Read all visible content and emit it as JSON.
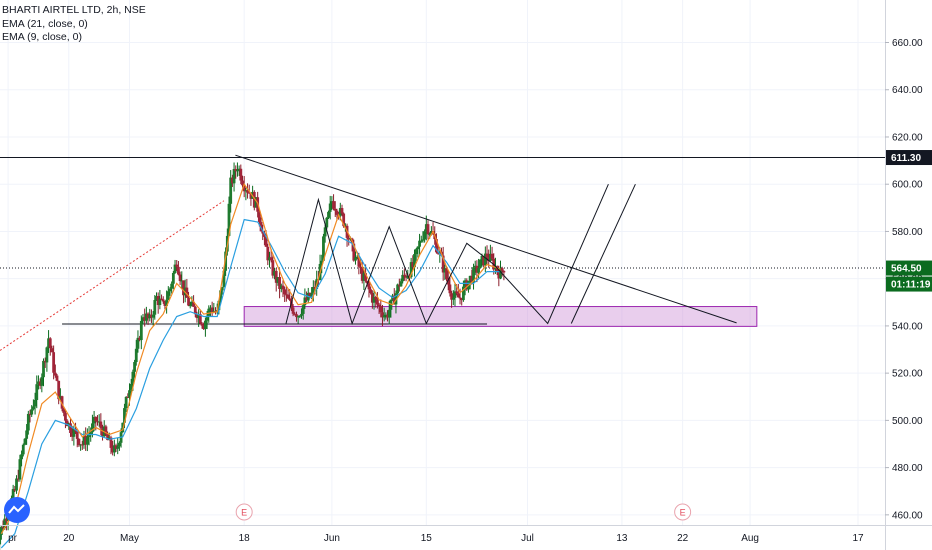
{
  "chart_data": {
    "type": "candlestick",
    "legend": {
      "symbol": "BHARTI AIRTEL LTD, 2h, NSE",
      "ema21": "EMA (21, close, 0)",
      "ema9": "EMA (9, close, 0)"
    },
    "x_ticks": [
      "pr",
      "20",
      "May",
      "18",
      "Jun",
      "15",
      "Jul",
      "13",
      "22",
      "Aug",
      "17"
    ],
    "x_tick_days": [
      0,
      9,
      18,
      35,
      48,
      62,
      77,
      91,
      100,
      110,
      126
    ],
    "y_ticks": [
      460,
      480,
      500,
      520,
      540,
      560,
      580,
      600,
      620,
      640,
      660
    ],
    "y_tick_labels": [
      "460.00",
      "480.00",
      "500.00",
      "520.00",
      "540.00",
      "560.00",
      "580.00",
      "600.00",
      "620.00",
      "640.00",
      "660.00"
    ],
    "ylim": [
      455.7,
      678
    ],
    "xlim_days": [
      -1.2,
      130
    ],
    "current_price": 564.5,
    "current_price_label": "564.50",
    "countdown_label": "01:11:19",
    "resistance_price": 611.3,
    "resistance_label": "611.30",
    "earnings_label": "E",
    "earnings_days": [
      35,
      100
    ],
    "candle_anchors": [
      [
        -2,
        446
      ],
      [
        1,
        470
      ],
      [
        3,
        500
      ],
      [
        5,
        520
      ],
      [
        6,
        535
      ],
      [
        7,
        518
      ],
      [
        8,
        505
      ],
      [
        9,
        498
      ],
      [
        10,
        494
      ],
      [
        11,
        490
      ],
      [
        12,
        494
      ],
      [
        13,
        500
      ],
      [
        14,
        496
      ],
      [
        15,
        490
      ],
      [
        16,
        486
      ],
      [
        17,
        500
      ],
      [
        18,
        515
      ],
      [
        19,
        528
      ],
      [
        20,
        545
      ],
      [
        21,
        542
      ],
      [
        22,
        552
      ],
      [
        23,
        548
      ],
      [
        24,
        556
      ],
      [
        25,
        568
      ],
      [
        26,
        555
      ],
      [
        27,
        548
      ],
      [
        28,
        546
      ],
      [
        29,
        541
      ],
      [
        30,
        548
      ],
      [
        31,
        545
      ],
      [
        32,
        562
      ],
      [
        33,
        600
      ],
      [
        34,
        608
      ],
      [
        35,
        600
      ],
      [
        36,
        596
      ],
      [
        37,
        590
      ],
      [
        38,
        575
      ],
      [
        39,
        565
      ],
      [
        40,
        558
      ],
      [
        41,
        553
      ],
      [
        42,
        548
      ],
      [
        43,
        545
      ],
      [
        44,
        550
      ],
      [
        45,
        553
      ],
      [
        46,
        560
      ],
      [
        47,
        580
      ],
      [
        48,
        593
      ],
      [
        49,
        589
      ],
      [
        50,
        583
      ],
      [
        51,
        572
      ],
      [
        52,
        565
      ],
      [
        53,
        558
      ],
      [
        54,
        552
      ],
      [
        55,
        548
      ],
      [
        56,
        544
      ],
      [
        57,
        550
      ],
      [
        58,
        558
      ],
      [
        59,
        562
      ],
      [
        60,
        565
      ],
      [
        61,
        575
      ],
      [
        62,
        583
      ],
      [
        63,
        578
      ],
      [
        64,
        570
      ],
      [
        65,
        560
      ],
      [
        66,
        552
      ],
      [
        67,
        552
      ],
      [
        68,
        558
      ],
      [
        69,
        562
      ],
      [
        70,
        566
      ],
      [
        71,
        570
      ],
      [
        72,
        566
      ],
      [
        73,
        562
      ],
      [
        73.5,
        565
      ]
    ],
    "ema9_anchors": [
      [
        -1,
        452
      ],
      [
        1,
        462
      ],
      [
        3,
        486
      ],
      [
        5,
        507
      ],
      [
        7,
        512
      ],
      [
        9,
        502
      ],
      [
        11,
        493
      ],
      [
        13,
        497
      ],
      [
        15,
        494
      ],
      [
        17,
        496
      ],
      [
        19,
        520
      ],
      [
        21,
        538
      ],
      [
        23,
        545
      ],
      [
        25,
        558
      ],
      [
        27,
        552
      ],
      [
        29,
        545
      ],
      [
        31,
        546
      ],
      [
        33,
        583
      ],
      [
        35,
        600
      ],
      [
        37,
        592
      ],
      [
        39,
        572
      ],
      [
        41,
        558
      ],
      [
        43,
        549
      ],
      [
        45,
        550
      ],
      [
        47,
        570
      ],
      [
        49,
        587
      ],
      [
        51,
        576
      ],
      [
        53,
        562
      ],
      [
        55,
        551
      ],
      [
        57,
        549
      ],
      [
        59,
        557
      ],
      [
        61,
        570
      ],
      [
        63,
        580
      ],
      [
        65,
        565
      ],
      [
        67,
        554
      ],
      [
        69,
        559
      ],
      [
        71,
        566
      ],
      [
        73,
        564
      ]
    ],
    "ema21_anchors": [
      [
        -1,
        446
      ],
      [
        1,
        452
      ],
      [
        3,
        470
      ],
      [
        5,
        490
      ],
      [
        7,
        500
      ],
      [
        9,
        498
      ],
      [
        11,
        494
      ],
      [
        13,
        494
      ],
      [
        15,
        492
      ],
      [
        17,
        493
      ],
      [
        19,
        505
      ],
      [
        21,
        522
      ],
      [
        23,
        534
      ],
      [
        25,
        544
      ],
      [
        27,
        546
      ],
      [
        29,
        544
      ],
      [
        31,
        544
      ],
      [
        33,
        565
      ],
      [
        35,
        585
      ],
      [
        37,
        584
      ],
      [
        39,
        574
      ],
      [
        41,
        563
      ],
      [
        43,
        554
      ],
      [
        45,
        552
      ],
      [
        47,
        562
      ],
      [
        49,
        578
      ],
      [
        51,
        575
      ],
      [
        53,
        565
      ],
      [
        55,
        556
      ],
      [
        57,
        552
      ],
      [
        59,
        555
      ],
      [
        61,
        563
      ],
      [
        63,
        574
      ],
      [
        65,
        567
      ],
      [
        67,
        558
      ],
      [
        69,
        558
      ],
      [
        71,
        563
      ],
      [
        73,
        563
      ]
    ],
    "drawings": {
      "support_line": {
        "days": [
          8,
          71
        ],
        "price": 540.8
      },
      "descending_trendline": {
        "from": [
          33.7,
          612.3
        ],
        "to": [
          108,
          541.3
        ]
      },
      "dotted_trend": {
        "from": [
          -1.2,
          529.6
        ],
        "to": [
          32,
          593
        ]
      },
      "support_zone": {
        "days": [
          35,
          111
        ],
        "prices": [
          539.8,
          548.2
        ]
      },
      "zigzag": [
        [
          41.2,
          541
        ],
        [
          46,
          593.5
        ],
        [
          51,
          541
        ],
        [
          56.5,
          582
        ],
        [
          62,
          541
        ],
        [
          68,
          575
        ],
        [
          72,
          566
        ],
        [
          80,
          541
        ],
        [
          89,
          600
        ]
      ],
      "zigzag2": [
        [
          83.5,
          541
        ],
        [
          93,
          600
        ]
      ]
    }
  }
}
